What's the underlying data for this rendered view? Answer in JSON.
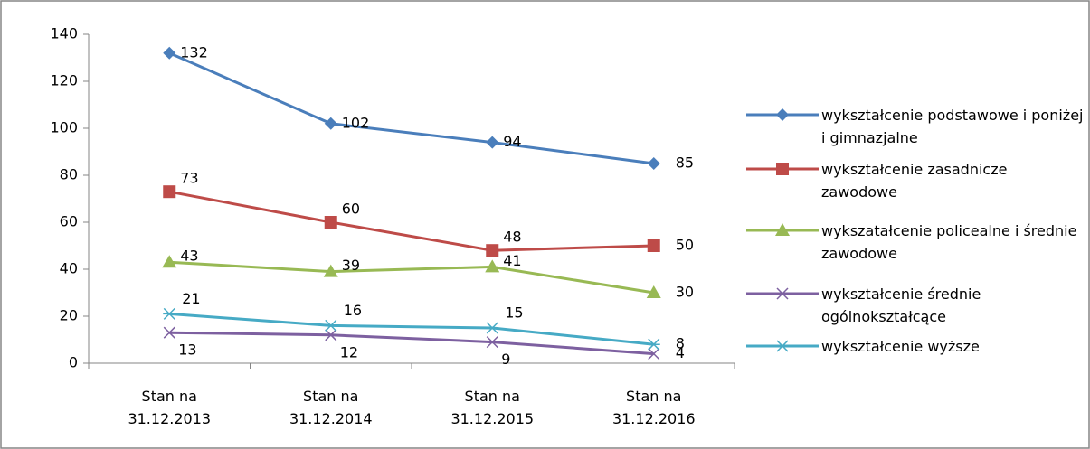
{
  "chart_data": {
    "type": "line",
    "categories": [
      "Stan na 31.12.2013",
      "Stan na 31.12.2014",
      "Stan na 31.12.2015",
      "Stan na 31.12.2016"
    ],
    "series": [
      {
        "name": "wykształcenie podstawowe i poniżej i gimnazjalne",
        "color": "#4a7ebb",
        "marker": "diamond",
        "values": [
          132,
          102,
          94,
          85
        ]
      },
      {
        "name": "wykształcenie zasadnicze zawodowe",
        "color": "#be4b48",
        "marker": "square",
        "values": [
          73,
          60,
          48,
          50
        ]
      },
      {
        "name": "wykszatałcenie policealne i średnie zawodowe",
        "color": "#98b954",
        "marker": "triangle",
        "values": [
          43,
          39,
          41,
          30
        ]
      },
      {
        "name": "wykształcenie średnie ogólnokształcące",
        "color": "#7d60a0",
        "marker": "x",
        "values": [
          13,
          12,
          9,
          4
        ]
      },
      {
        "name": "wykształcenie wyższe",
        "color": "#46aac5",
        "marker": "star",
        "values": [
          21,
          16,
          15,
          8
        ]
      }
    ],
    "ylim": [
      0,
      140
    ],
    "yticks": [
      0,
      20,
      40,
      60,
      80,
      100,
      120,
      140
    ],
    "legend": "right"
  }
}
